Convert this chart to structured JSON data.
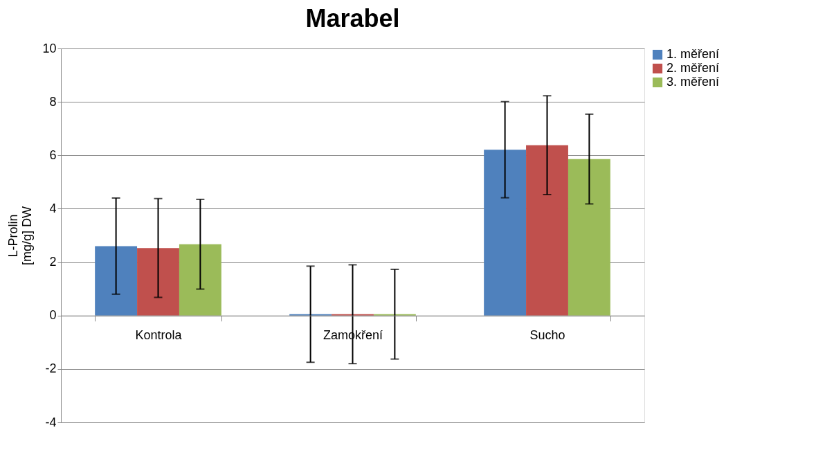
{
  "chart_data": {
    "type": "bar",
    "title": "Marabel",
    "ylabel": [
      "L-Prolin",
      "[mg/g] DW"
    ],
    "categories": [
      "Kontrola",
      "Zamokření",
      "Sucho"
    ],
    "series": [
      {
        "name": "1. měření",
        "color": "#4f81bd",
        "values": [
          2.6,
          0.05,
          6.21
        ],
        "errors": [
          1.8,
          1.8,
          1.8
        ]
      },
      {
        "name": "2. měření",
        "color": "#c0504d",
        "values": [
          2.53,
          0.05,
          6.38
        ],
        "errors": [
          1.85,
          1.85,
          1.85
        ]
      },
      {
        "name": "3. měření",
        "color": "#9bbb59",
        "values": [
          2.67,
          0.05,
          5.86
        ],
        "errors": [
          1.68,
          1.68,
          1.68
        ]
      }
    ],
    "ylim": [
      -4,
      10
    ],
    "yticks": [
      -4,
      -2,
      0,
      2,
      4,
      6,
      8,
      10
    ],
    "grid": "y",
    "legend": "right"
  }
}
